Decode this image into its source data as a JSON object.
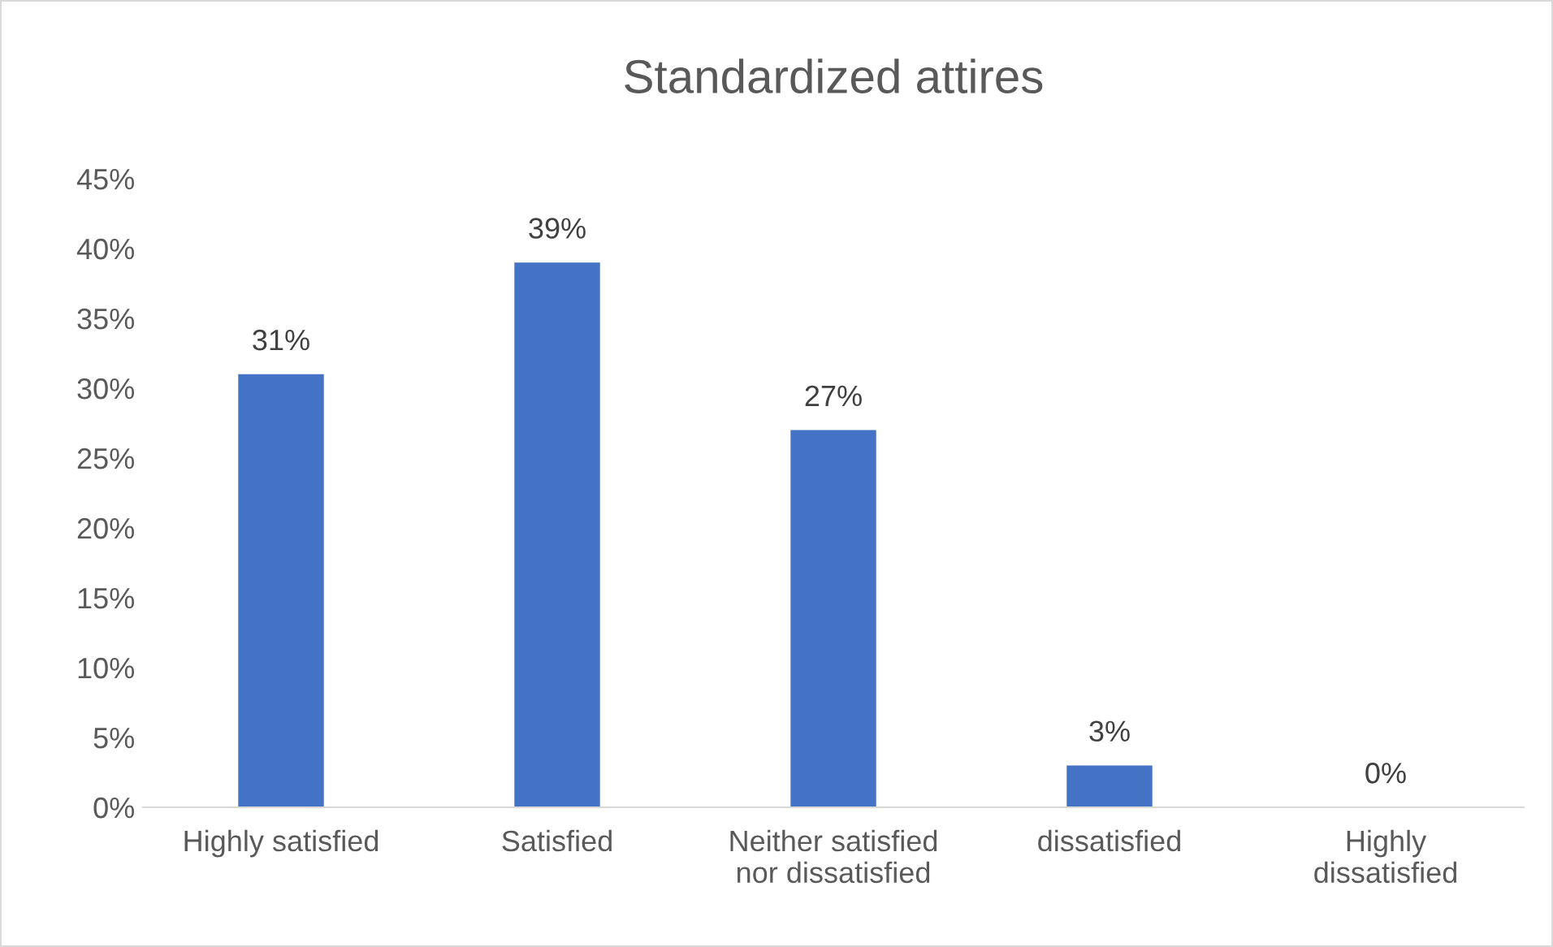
{
  "chart_data": {
    "type": "bar",
    "title": "Standardized attires",
    "categories": [
      "Highly satisfied",
      "Satisfied",
      "Neither satisfied\nnor dissatisfied",
      "dissatisfied",
      "Highly\ndissatisfied"
    ],
    "values": [
      31,
      39,
      27,
      3,
      0
    ],
    "value_labels": [
      "31%",
      "39%",
      "27%",
      "3%",
      "0%"
    ],
    "color": "#4472c4",
    "ylim": [
      0,
      45
    ],
    "yticks": [
      {
        "value": 0,
        "label": "0%"
      },
      {
        "value": 5,
        "label": "5%"
      },
      {
        "value": 10,
        "label": "10%"
      },
      {
        "value": 15,
        "label": "15%"
      },
      {
        "value": 20,
        "label": "20%"
      },
      {
        "value": 25,
        "label": "25%"
      },
      {
        "value": 30,
        "label": "30%"
      },
      {
        "value": 35,
        "label": "35%"
      },
      {
        "value": 40,
        "label": "40%"
      },
      {
        "value": 45,
        "label": "45%"
      }
    ],
    "grid": false,
    "legend": false
  }
}
